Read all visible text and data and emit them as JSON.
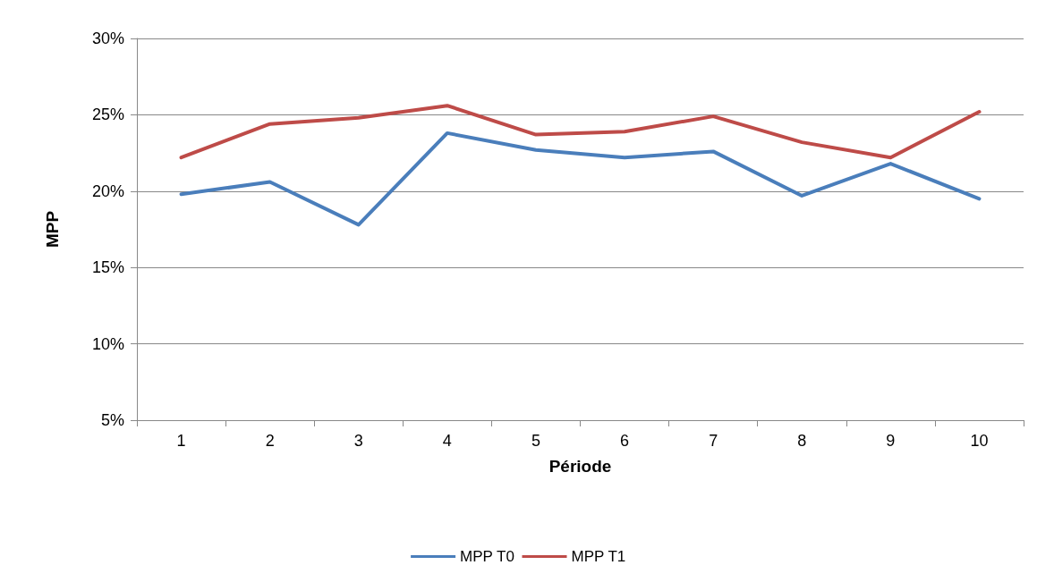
{
  "chart_data": {
    "type": "line",
    "xlabel": "Période",
    "ylabel": "MPP",
    "categories": [
      "1",
      "2",
      "3",
      "4",
      "5",
      "6",
      "7",
      "8",
      "9",
      "10"
    ],
    "series": [
      {
        "name": "MPP T0",
        "color": "#4a7ebb",
        "values": [
          19.8,
          20.6,
          17.8,
          23.8,
          22.7,
          22.2,
          22.6,
          19.7,
          21.8,
          19.5
        ]
      },
      {
        "name": "MPP T1",
        "color": "#be4b48",
        "values": [
          22.2,
          24.4,
          24.8,
          25.6,
          23.7,
          23.9,
          24.9,
          23.2,
          22.2,
          25.2
        ]
      }
    ],
    "ylim": [
      5,
      30
    ],
    "yticks": [
      {
        "value": 5,
        "label": "5%"
      },
      {
        "value": 10,
        "label": "10%"
      },
      {
        "value": 15,
        "label": "15%"
      },
      {
        "value": 20,
        "label": "20%"
      },
      {
        "value": 25,
        "label": "25%"
      },
      {
        "value": 30,
        "label": "30%"
      }
    ],
    "grid": "y",
    "legend": "bottom",
    "marker": "none",
    "line_style": "solid"
  }
}
